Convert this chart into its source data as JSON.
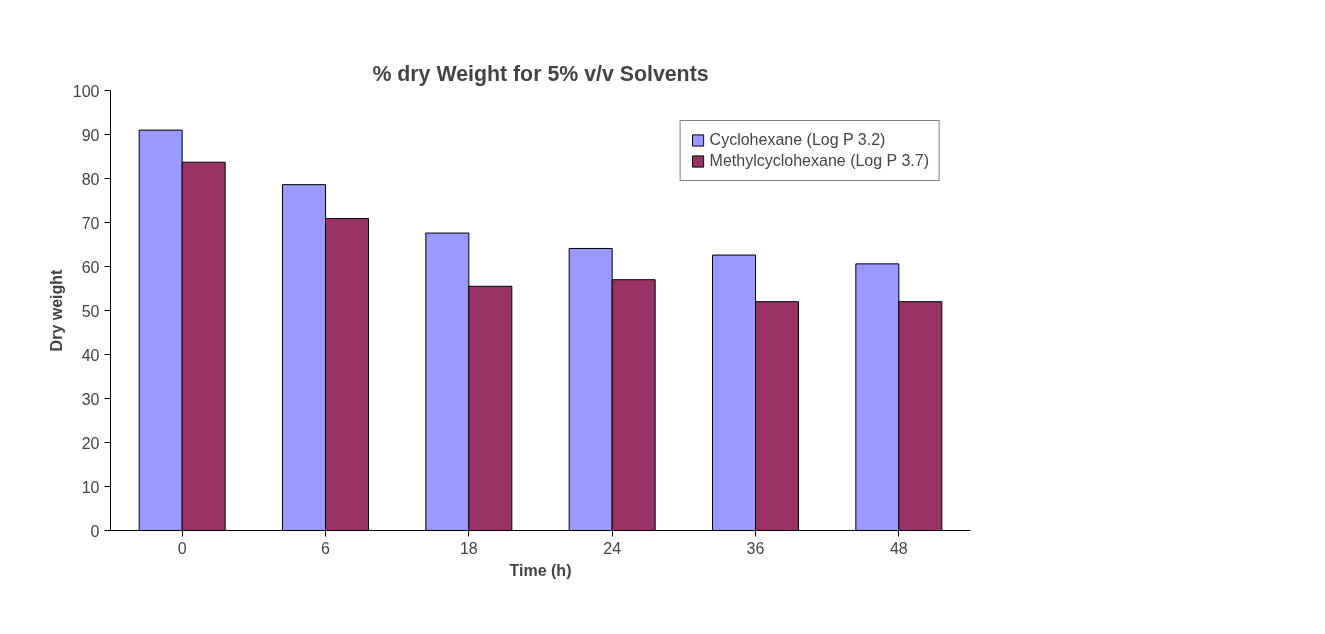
{
  "chart_data": {
    "type": "bar",
    "title": "% dry Weight for 5% v/v Solvents",
    "xlabel": "Time (h)",
    "ylabel": "Dry weight",
    "categories": [
      "0",
      "6",
      "18",
      "24",
      "36",
      "48"
    ],
    "series": [
      {
        "name": "Cyclohexane (Log P 3.2)",
        "color": "#9999ff",
        "values": [
          91,
          78.6,
          67.6,
          64.1,
          62.6,
          60.6
        ]
      },
      {
        "name": "Methylcyclohexane (Log P 3.7)",
        "color": "#993366",
        "values": [
          83.7,
          70.9,
          55.5,
          57,
          52,
          52
        ]
      }
    ],
    "ylim": [
      0,
      100
    ],
    "yticks": [
      0,
      10,
      20,
      30,
      40,
      50,
      60,
      70,
      80,
      90,
      100
    ],
    "grid": false,
    "legend": "top right"
  }
}
